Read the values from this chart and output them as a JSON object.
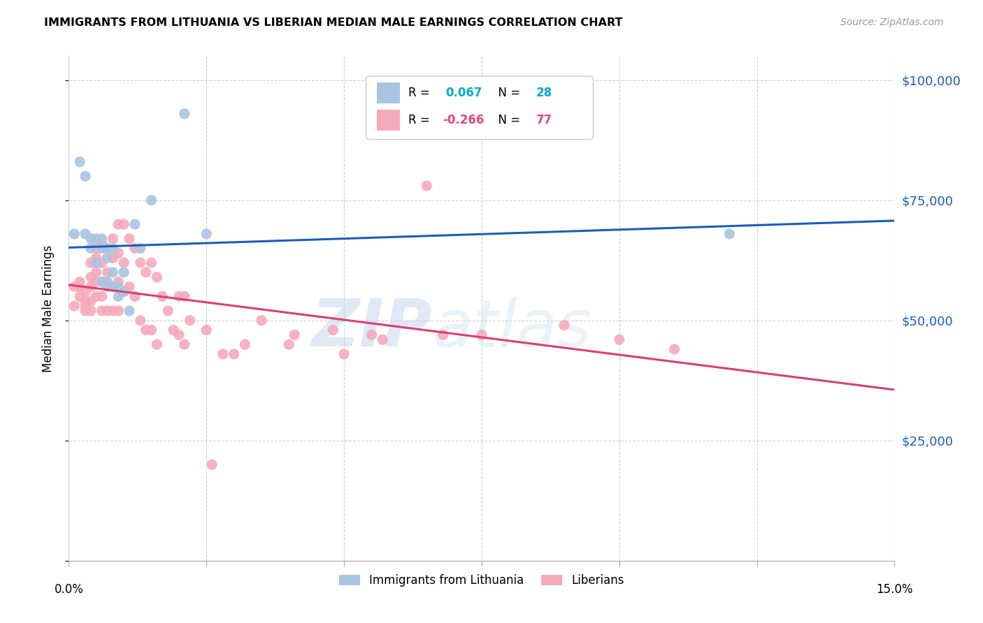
{
  "title": "IMMIGRANTS FROM LITHUANIA VS LIBERIAN MEDIAN MALE EARNINGS CORRELATION CHART",
  "source": "Source: ZipAtlas.com",
  "ylabel": "Median Male Earnings",
  "y_ticks": [
    0,
    25000,
    50000,
    75000,
    100000
  ],
  "y_tick_labels": [
    "",
    "$25,000",
    "$50,000",
    "$75,000",
    "$100,000"
  ],
  "x_min": 0.0,
  "x_max": 0.15,
  "y_min": 0,
  "y_max": 105000,
  "legend_r1_left": "R =  0.067",
  "legend_r1_right": "N = 28",
  "legend_r2_left": "R = -0.266",
  "legend_r2_right": "N = 77",
  "legend_label1": "Immigrants from Lithuania",
  "legend_label2": "Liberians",
  "blue_color": "#aac4e2",
  "pink_color": "#f5aabb",
  "blue_line_color": "#1a5eb8",
  "pink_line_color": "#d94070",
  "watermark_zip": "ZIP",
  "watermark_atlas": "atlas",
  "blue_scatter_x": [
    0.001,
    0.002,
    0.003,
    0.003,
    0.004,
    0.004,
    0.005,
    0.005,
    0.006,
    0.006,
    0.006,
    0.007,
    0.007,
    0.007,
    0.008,
    0.008,
    0.008,
    0.009,
    0.009,
    0.01,
    0.01,
    0.011,
    0.012,
    0.013,
    0.015,
    0.021,
    0.025,
    0.12
  ],
  "blue_scatter_y": [
    68000,
    83000,
    80000,
    68000,
    67000,
    65000,
    67000,
    62000,
    67000,
    65000,
    58000,
    65000,
    63000,
    58000,
    65000,
    60000,
    57000,
    57000,
    55000,
    60000,
    56000,
    52000,
    70000,
    65000,
    75000,
    93000,
    68000,
    68000
  ],
  "pink_scatter_x": [
    0.001,
    0.001,
    0.002,
    0.002,
    0.002,
    0.003,
    0.003,
    0.003,
    0.003,
    0.004,
    0.004,
    0.004,
    0.004,
    0.004,
    0.005,
    0.005,
    0.005,
    0.005,
    0.005,
    0.006,
    0.006,
    0.006,
    0.006,
    0.006,
    0.007,
    0.007,
    0.007,
    0.007,
    0.008,
    0.008,
    0.008,
    0.008,
    0.009,
    0.009,
    0.009,
    0.009,
    0.01,
    0.01,
    0.01,
    0.011,
    0.011,
    0.012,
    0.012,
    0.013,
    0.013,
    0.014,
    0.014,
    0.015,
    0.015,
    0.016,
    0.016,
    0.017,
    0.018,
    0.019,
    0.02,
    0.02,
    0.021,
    0.021,
    0.022,
    0.025,
    0.026,
    0.028,
    0.03,
    0.032,
    0.035,
    0.04,
    0.041,
    0.048,
    0.05,
    0.055,
    0.057,
    0.065,
    0.068,
    0.075,
    0.09,
    0.1,
    0.11
  ],
  "pink_scatter_y": [
    57000,
    53000,
    58000,
    57000,
    55000,
    56000,
    54000,
    53000,
    52000,
    62000,
    59000,
    57000,
    54000,
    52000,
    65000,
    63000,
    60000,
    58000,
    55000,
    66000,
    62000,
    58000,
    55000,
    52000,
    65000,
    60000,
    57000,
    52000,
    67000,
    63000,
    57000,
    52000,
    70000,
    64000,
    58000,
    52000,
    70000,
    62000,
    56000,
    67000,
    57000,
    65000,
    55000,
    62000,
    50000,
    60000,
    48000,
    62000,
    48000,
    59000,
    45000,
    55000,
    52000,
    48000,
    55000,
    47000,
    55000,
    45000,
    50000,
    48000,
    20000,
    43000,
    43000,
    45000,
    50000,
    45000,
    47000,
    48000,
    43000,
    47000,
    46000,
    78000,
    47000,
    47000,
    49000,
    46000,
    44000
  ]
}
